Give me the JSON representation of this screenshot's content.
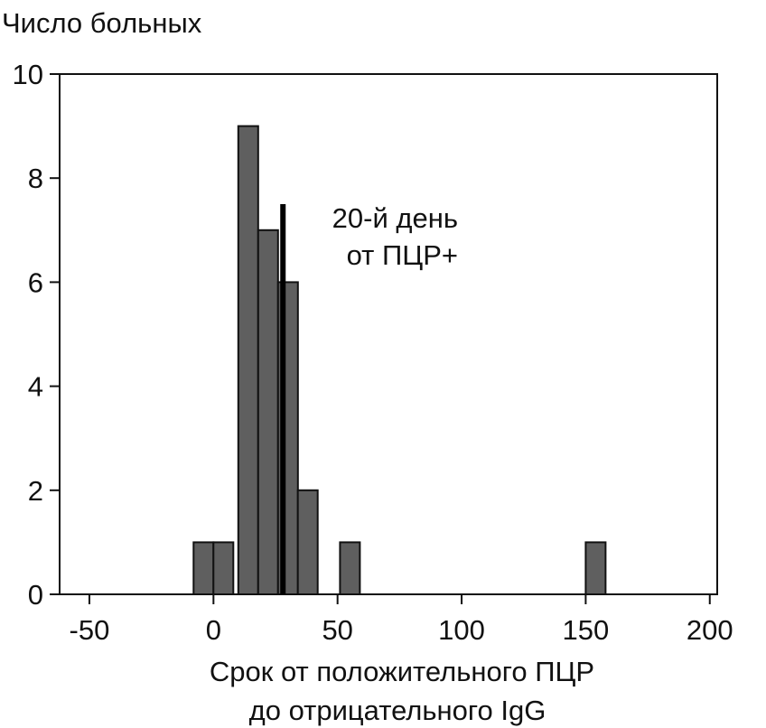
{
  "chart_data": {
    "type": "bar",
    "ylabel": "Число больных",
    "xlabel_lines": [
      "Срок от положительного ПЦР",
      "до отрицательного IgG"
    ],
    "xlim": [
      -62,
      203
    ],
    "ylim": [
      0,
      10
    ],
    "x_ticks": [
      -50,
      0,
      50,
      100,
      150,
      200
    ],
    "y_ticks": [
      0,
      2,
      4,
      6,
      8,
      10
    ],
    "bin_width": 8,
    "bars": [
      {
        "x": -4,
        "value": 1
      },
      {
        "x": 4,
        "value": 1
      },
      {
        "x": 14,
        "value": 9
      },
      {
        "x": 22,
        "value": 7
      },
      {
        "x": 30,
        "value": 6
      },
      {
        "x": 38,
        "value": 2
      },
      {
        "x": 55,
        "value": 1
      },
      {
        "x": 154,
        "value": 1
      }
    ],
    "bar_color": "#5f5f5f",
    "marker": {
      "x": 28,
      "top": 7.5,
      "color": "#000000",
      "label_lines": [
        "20-й день",
        "от ПЦР+"
      ]
    },
    "grid": false
  }
}
